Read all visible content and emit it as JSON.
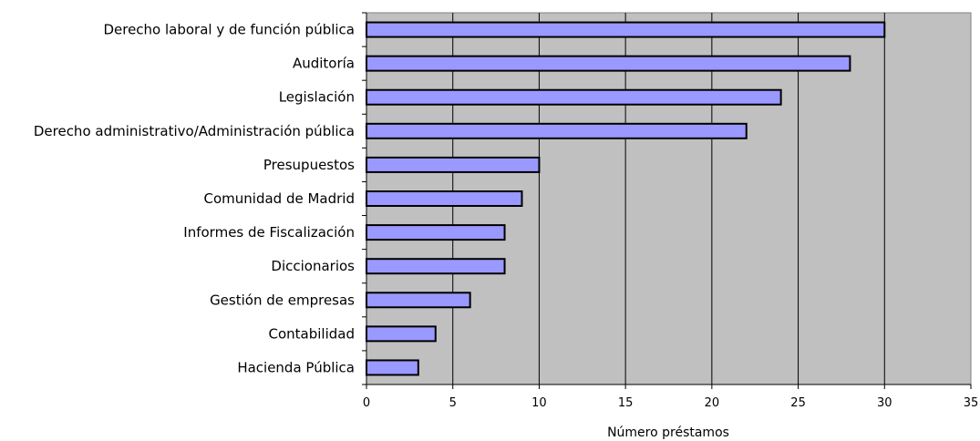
{
  "chart_data": {
    "type": "bar",
    "orientation": "horizontal",
    "categories": [
      "Derecho laboral y de función pública",
      "Auditoría",
      "Legislación",
      "Derecho administrativo/Administración pública",
      "Presupuestos",
      "Comunidad de Madrid",
      "Informes de Fiscalización",
      "Diccionarios",
      "Gestión de empresas",
      "Contabilidad",
      "Hacienda Pública"
    ],
    "values": [
      30,
      28,
      24,
      22,
      10,
      9,
      8,
      8,
      6,
      4,
      3
    ],
    "xlabel": "Número préstamos",
    "ylabel": "",
    "xlim": [
      0,
      35
    ],
    "xticks": [
      0,
      5,
      10,
      15,
      20,
      25,
      30,
      35
    ],
    "grid": true,
    "legend": "none",
    "colors": {
      "bar_fill": "#9999ff",
      "bar_stroke": "#000000",
      "plot_background": "#c0c0c0",
      "gridline": "#000000"
    }
  }
}
